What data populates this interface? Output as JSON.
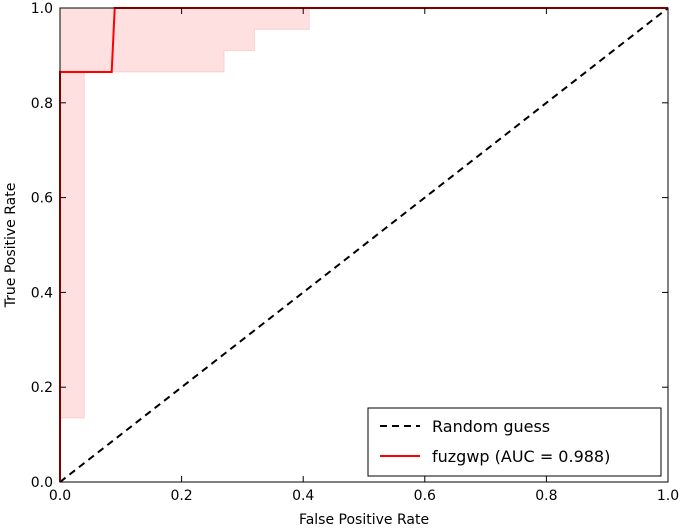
{
  "chart_data": {
    "type": "line",
    "title": "",
    "xlabel": "False Positive Rate",
    "ylabel": "True Positive Rate",
    "xlim": [
      0,
      1
    ],
    "ylim": [
      0,
      1
    ],
    "grid": false,
    "x_ticks": [
      "0.0",
      "0.2",
      "0.4",
      "0.6",
      "0.8",
      "1.0"
    ],
    "y_ticks": [
      "0.0",
      "0.2",
      "0.4",
      "0.6",
      "0.8",
      "1.0"
    ],
    "legend_placement": "lower-right",
    "series": [
      {
        "name": "Random guess",
        "style": "dashed",
        "color": "#000000",
        "x": [
          0,
          1
        ],
        "y": [
          0,
          1
        ]
      },
      {
        "name": "fuzgwp (AUC = 0.988)",
        "style": "solid",
        "color": "#ff0000",
        "x": [
          0,
          0,
          0.085,
          0.09,
          1
        ],
        "y": [
          0,
          0.865,
          0.865,
          1,
          1
        ]
      }
    ],
    "confidence_band": {
      "color": "#ff0000",
      "opacity": 0.12,
      "x": [
        0,
        0.04,
        0.04,
        0.09,
        0.27,
        0.27,
        0.32,
        0.32,
        0.41,
        0.41,
        1
      ],
      "upper": [
        1,
        1,
        1,
        1,
        1,
        1,
        1,
        1,
        1,
        1,
        1
      ],
      "lower": [
        0.135,
        0.135,
        0.865,
        0.865,
        0.865,
        0.91,
        0.91,
        0.955,
        0.955,
        1,
        1
      ]
    }
  }
}
